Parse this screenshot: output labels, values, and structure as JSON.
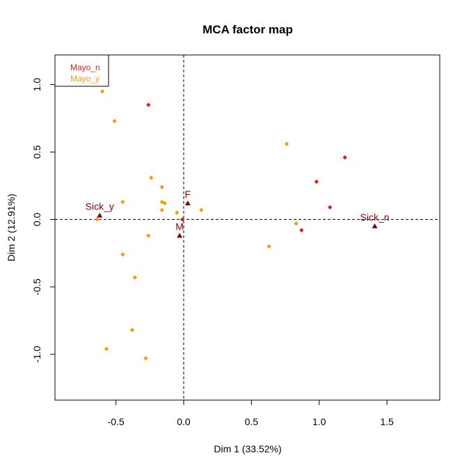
{
  "chart_data": {
    "type": "scatter",
    "title": "MCA factor map",
    "xlabel": "Dim 1 (33.52%)",
    "ylabel": "Dim 2 (12.91%)",
    "xlim": [
      -0.95,
      1.89
    ],
    "ylim": [
      -1.34,
      1.22
    ],
    "xticks": [
      -0.5,
      0.0,
      0.5,
      1.0,
      1.5
    ],
    "xtick_labels": [
      "-0.5",
      "0.0",
      "0.5",
      "1.0",
      "1.5"
    ],
    "yticks": [
      -1.0,
      -0.5,
      0.0,
      0.5,
      1.0
    ],
    "ytick_labels": [
      "-1.0",
      "-0.5",
      "0.0",
      "0.5",
      "1.0"
    ],
    "grid": false,
    "reference_lines": {
      "x": 0,
      "y": 0,
      "style": "dashed"
    },
    "legend": {
      "position": "top-left",
      "entries": [
        {
          "label": "Mayo_n",
          "color": "#e31a1c"
        },
        {
          "label": "Mayo_y",
          "color": "#f39c12"
        }
      ]
    },
    "series": [
      {
        "name": "Mayo_n",
        "color": "#e31a1c",
        "marker": "diamond",
        "points": [
          {
            "x": -0.26,
            "y": 0.85
          },
          {
            "x": 1.19,
            "y": 0.46
          },
          {
            "x": 0.98,
            "y": 0.28
          },
          {
            "x": 1.08,
            "y": 0.09
          },
          {
            "x": 0.87,
            "y": -0.08
          },
          {
            "x": -0.01,
            "y": 0.0
          }
        ]
      },
      {
        "name": "Mayo_y",
        "color": "#f39c12",
        "marker": "diamond",
        "points": [
          {
            "x": -0.6,
            "y": 0.95
          },
          {
            "x": -0.51,
            "y": 0.73
          },
          {
            "x": 0.76,
            "y": 0.56
          },
          {
            "x": -0.24,
            "y": 0.31
          },
          {
            "x": -0.16,
            "y": 0.24
          },
          {
            "x": -0.45,
            "y": 0.13
          },
          {
            "x": -0.16,
            "y": 0.13
          },
          {
            "x": -0.14,
            "y": 0.12
          },
          {
            "x": -0.16,
            "y": 0.07
          },
          {
            "x": 0.13,
            "y": 0.07
          },
          {
            "x": -0.05,
            "y": 0.05
          },
          {
            "x": -0.64,
            "y": 0.0
          },
          {
            "x": 0.83,
            "y": -0.03
          },
          {
            "x": -0.26,
            "y": -0.12
          },
          {
            "x": 0.63,
            "y": -0.2
          },
          {
            "x": -0.45,
            "y": -0.26
          },
          {
            "x": -0.36,
            "y": -0.43
          },
          {
            "x": -0.38,
            "y": -0.82
          },
          {
            "x": -0.57,
            "y": -0.96
          },
          {
            "x": -0.28,
            "y": -1.03
          }
        ]
      }
    ],
    "categories": {
      "color": "#8b0000",
      "marker": "triangle",
      "points": [
        {
          "label": "Sick_y",
          "x": -0.62,
          "y": 0.03
        },
        {
          "label": "Sick_n",
          "x": 1.41,
          "y": -0.05
        },
        {
          "label": "F",
          "x": 0.03,
          "y": 0.12
        },
        {
          "label": "M",
          "x": -0.03,
          "y": -0.12
        }
      ]
    }
  }
}
